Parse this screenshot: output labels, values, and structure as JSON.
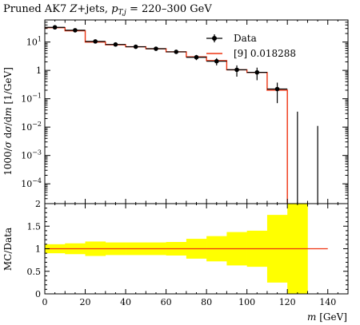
{
  "chart_data": [
    {
      "type": "line",
      "panel": "main",
      "title": "Pruned AK7 Z+jets, p_{T,j} = 220–300 GeV",
      "title_parts": {
        "prefix": "Pruned AK7 ",
        "z": "Z",
        "mid": "+jets, ",
        "pt": "p",
        "pt_sub": "T,j",
        "suffix": " = 220–300 GeV"
      },
      "ylabel": "1000/σ dσ/dm [1/GeV]",
      "ylabel_parts": {
        "a": "1000/",
        "sigma": "σ",
        "b": " d",
        "sigma2": "σ",
        "c": "/d",
        "m": "m",
        "d": " [1/GeV]"
      },
      "yscale": "log",
      "ylim": [
        2e-05,
        60
      ],
      "xlim": [
        0,
        150
      ],
      "y_ticks": [
        {
          "v": 10,
          "label": "10",
          "exp": "1"
        },
        {
          "v": 1,
          "label": "1",
          "exp": ""
        },
        {
          "v": 0.1,
          "label": "10",
          "exp": "−1"
        },
        {
          "v": 0.01,
          "label": "10",
          "exp": "−2"
        },
        {
          "v": 0.001,
          "label": "10",
          "exp": "−3"
        },
        {
          "v": 0.0001,
          "label": "10",
          "exp": "−4"
        }
      ],
      "legend": {
        "placement": "top-right",
        "entries": [
          {
            "label": "Data",
            "style": "marker"
          },
          {
            "label": "[9] 0.018288",
            "style": "line",
            "color": "#ee3311"
          }
        ]
      },
      "series": [
        {
          "name": "Data",
          "x": [
            5,
            15,
            25,
            35,
            45,
            55,
            65,
            75,
            85,
            95,
            105,
            115,
            125,
            135
          ],
          "values": [
            33,
            26,
            10.5,
            8.2,
            6.8,
            5.8,
            4.5,
            2.9,
            2.1,
            1.05,
            0.85,
            0.22,
            null,
            null
          ],
          "err_low": [
            3,
            2.5,
            1.2,
            0.9,
            0.8,
            0.7,
            0.6,
            0.6,
            0.6,
            0.45,
            0.4,
            0.15,
            0,
            0
          ],
          "err_high": [
            3,
            2.5,
            1.2,
            0.9,
            0.8,
            0.7,
            0.6,
            0.6,
            0.6,
            0.45,
            0.4,
            0.15,
            0.035,
            0.011
          ],
          "color": "#000000"
        },
        {
          "name": "[9] 0.018288",
          "bin_edges": [
            0,
            10,
            20,
            30,
            40,
            50,
            60,
            70,
            80,
            90,
            100,
            110,
            120
          ],
          "values": [
            32,
            25,
            10,
            8,
            6.8,
            5.8,
            4.5,
            3.0,
            2.2,
            1.05,
            0.85,
            0.2
          ],
          "color": "#ee3311"
        }
      ]
    },
    {
      "type": "area",
      "panel": "ratio",
      "ylabel": "MC/Data",
      "xlabel_parts": {
        "m": "m",
        "unit": " [GeV]"
      },
      "xlim": [
        0,
        150
      ],
      "ylim": [
        0,
        2
      ],
      "y_ticks": [
        "0",
        "0.5",
        "1",
        "1.5",
        "2"
      ],
      "x_ticks": [
        "0",
        "20",
        "40",
        "60",
        "80",
        "100",
        "120",
        "140"
      ],
      "band_color": "#ffff00",
      "band": {
        "bin_edges": [
          0,
          10,
          20,
          30,
          40,
          50,
          60,
          70,
          80,
          90,
          100,
          110,
          120,
          130
        ],
        "low": [
          0.9,
          0.88,
          0.84,
          0.86,
          0.86,
          0.86,
          0.85,
          0.78,
          0.72,
          0.63,
          0.6,
          0.25,
          0,
          0
        ],
        "high": [
          1.1,
          1.12,
          1.16,
          1.14,
          1.14,
          1.14,
          1.15,
          1.22,
          1.28,
          1.37,
          1.4,
          1.75,
          2,
          2
        ]
      },
      "ratio_line": {
        "x": [
          0,
          140
        ],
        "y": [
          1,
          1
        ],
        "color": "#ee3311"
      }
    }
  ]
}
